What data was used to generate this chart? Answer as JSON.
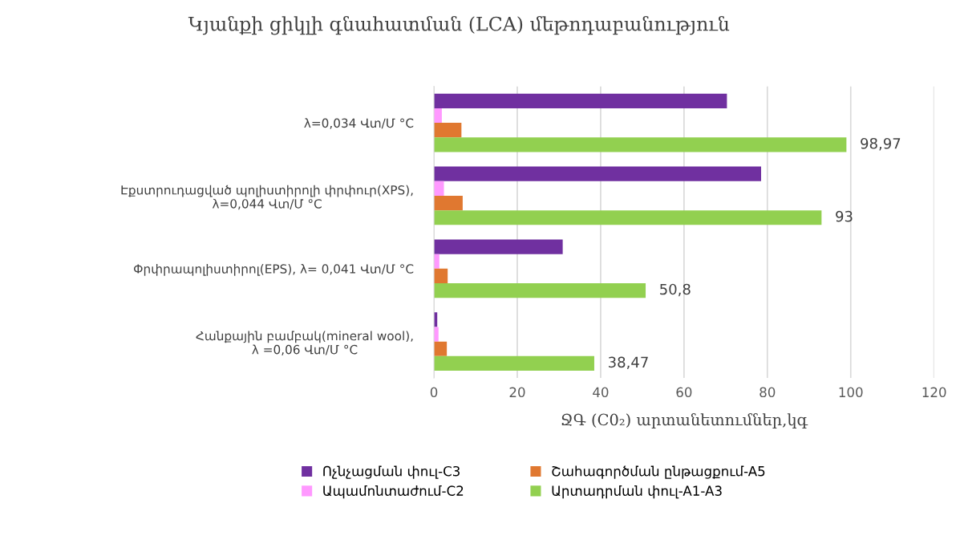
{
  "chart_data": {
    "type": "bar",
    "orientation": "horizontal",
    "title": "Կյանքի ցիկլի գնահատման (LCA) մեթոդաբանություն",
    "xlabel": "ՋԳ (C0₂) արտանետումներ,կգ",
    "categories": [
      "λ=0,034 Վտ/Մ °C",
      "Էքստրուդացված պոլիստիրոլի փրփուր(XPS),\nλ=0,044 Վտ/Մ °C",
      "Փրփրապոլիստիրոլ(EPS), λ= 0,041 Վտ/Մ °C",
      "Հանքային բամբակ(mineral wool),\nλ =0,06 Վտ/Մ °C"
    ],
    "series": [
      {
        "name": "Ոչնչացման փուլ-C3",
        "color": "#7030a0",
        "values": [
          70.3,
          78.5,
          30.9,
          0.8
        ]
      },
      {
        "name": "Ապամոնտաժում-C2",
        "color": "#ff99ff",
        "values": [
          1.9,
          2.4,
          1.3,
          1.1
        ]
      },
      {
        "name": "Շահագործման ընթացքում-A5",
        "color": "#e07830",
        "values": [
          6.6,
          6.9,
          3.3,
          3.1
        ]
      },
      {
        "name": "Արտադրման փուլ-A1-A3",
        "color": "#92d050",
        "values": [
          98.97,
          93,
          50.8,
          38.47
        ],
        "value_labels": [
          "98,97",
          "93",
          "50,8",
          "38,47"
        ]
      }
    ],
    "xlim": [
      0,
      120
    ],
    "xticks": [
      0,
      20,
      40,
      60,
      80,
      100,
      120
    ],
    "grid": "x",
    "legend": "bottom"
  }
}
